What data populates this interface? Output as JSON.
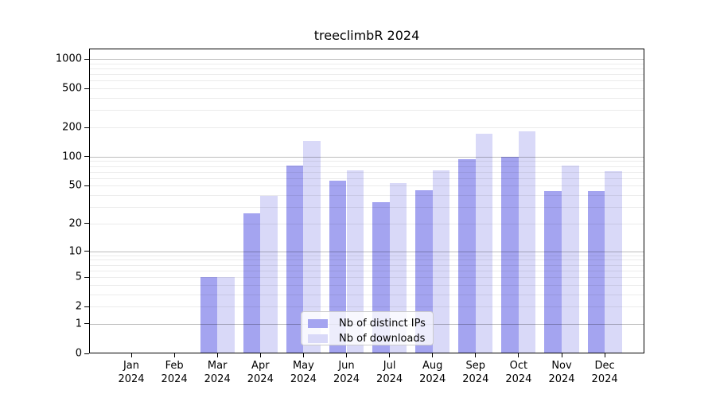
{
  "chart_data": {
    "type": "bar",
    "title": "treeclimbR 2024",
    "categories": [
      "Jan 2024",
      "Feb 2024",
      "Mar 2024",
      "Apr 2024",
      "May 2024",
      "Jun 2024",
      "Jul 2024",
      "Aug 2024",
      "Sep 2024",
      "Oct 2024",
      "Nov 2024",
      "Dec 2024"
    ],
    "series": [
      {
        "name": "Nb of distinct IPs",
        "color": "#a4a4f0",
        "values": [
          0,
          0,
          5,
          26,
          81,
          57,
          34,
          45,
          95,
          100,
          44,
          44
        ]
      },
      {
        "name": "Nb of downloads",
        "color": "#d9d9f8",
        "values": [
          0,
          0,
          5,
          39,
          145,
          72,
          53,
          73,
          172,
          182,
          81,
          71
        ]
      }
    ],
    "yscale": "log1p",
    "y_tick_labels": [
      "0",
      "1",
      "2",
      "5",
      "10",
      "20",
      "50",
      "100",
      "200",
      "500",
      "1000"
    ],
    "y_tick_values": [
      0,
      1,
      2,
      5,
      10,
      20,
      50,
      100,
      200,
      500,
      1000
    ],
    "major_grid_values": [
      1,
      10,
      100,
      1000
    ],
    "ylim": [
      0,
      1280
    ],
    "xlabel": "",
    "ylabel": "",
    "grid": "horizontal log major+minor",
    "legend_position": "inside lower-center"
  }
}
